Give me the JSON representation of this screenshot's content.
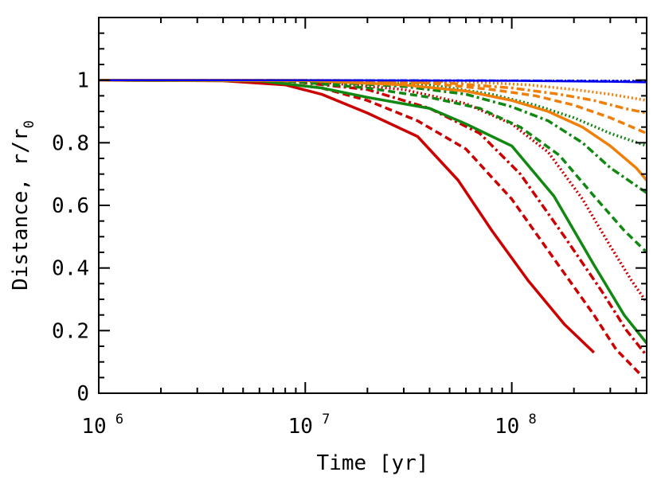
{
  "chart_data": {
    "type": "line",
    "xlabel": "Time [yr]",
    "ylabel": {
      "main": "Distance, r/r",
      "sub": "0"
    },
    "x_scale": "log",
    "xlim": [
      1000000,
      450000000
    ],
    "ylim": [
      0,
      1.2
    ],
    "x_ticks": [
      {
        "value": 1000000,
        "base": "10",
        "exp": "6"
      },
      {
        "value": 10000000,
        "base": "10",
        "exp": "7"
      },
      {
        "value": 100000000,
        "base": "10",
        "exp": "8"
      }
    ],
    "y_ticks": [
      {
        "value": 0,
        "label": "0"
      },
      {
        "value": 0.2,
        "label": "0.2"
      },
      {
        "value": 0.4,
        "label": "0.4"
      },
      {
        "value": 0.6,
        "label": "0.6"
      },
      {
        "value": 0.8,
        "label": "0.8"
      },
      {
        "value": 1.0,
        "label": "1"
      }
    ],
    "grid": false,
    "series": [
      {
        "color": "#cc0000",
        "style": "solid",
        "points": [
          [
            1000000,
            1.0
          ],
          [
            4000000,
            0.998
          ],
          [
            8000000,
            0.985
          ],
          [
            12000000,
            0.955
          ],
          [
            20000000,
            0.895
          ],
          [
            35000000,
            0.82
          ],
          [
            55000000,
            0.68
          ],
          [
            80000000,
            0.52
          ],
          [
            120000000,
            0.36
          ],
          [
            180000000,
            0.22
          ],
          [
            250000000,
            0.13
          ]
        ]
      },
      {
        "color": "#cc0000",
        "style": "dashed",
        "points": [
          [
            1000000,
            1.0
          ],
          [
            6000000,
            0.998
          ],
          [
            12000000,
            0.975
          ],
          [
            20000000,
            0.935
          ],
          [
            35000000,
            0.87
          ],
          [
            60000000,
            0.78
          ],
          [
            100000000,
            0.62
          ],
          [
            160000000,
            0.43
          ],
          [
            250000000,
            0.25
          ],
          [
            320000000,
            0.14
          ],
          [
            420000000,
            0.06
          ]
        ]
      },
      {
        "color": "#cc0000",
        "style": "dashdot",
        "points": [
          [
            1000000,
            1.0
          ],
          [
            8000000,
            0.998
          ],
          [
            20000000,
            0.97
          ],
          [
            40000000,
            0.91
          ],
          [
            70000000,
            0.83
          ],
          [
            110000000,
            0.7
          ],
          [
            180000000,
            0.5
          ],
          [
            270000000,
            0.33
          ],
          [
            360000000,
            0.2
          ],
          [
            450000000,
            0.12
          ]
        ]
      },
      {
        "color": "#cc0000",
        "style": "dotted",
        "points": [
          [
            1000000,
            1.0
          ],
          [
            10000000,
            0.998
          ],
          [
            30000000,
            0.97
          ],
          [
            60000000,
            0.925
          ],
          [
            100000000,
            0.86
          ],
          [
            150000000,
            0.77
          ],
          [
            220000000,
            0.62
          ],
          [
            300000000,
            0.47
          ],
          [
            380000000,
            0.36
          ],
          [
            450000000,
            0.29
          ]
        ]
      },
      {
        "color": "#118811",
        "style": "solid",
        "points": [
          [
            1000000,
            1.0
          ],
          [
            6000000,
            0.998
          ],
          [
            12000000,
            0.975
          ],
          [
            20000000,
            0.945
          ],
          [
            40000000,
            0.91
          ],
          [
            60000000,
            0.86
          ],
          [
            100000000,
            0.79
          ],
          [
            160000000,
            0.63
          ],
          [
            250000000,
            0.41
          ],
          [
            350000000,
            0.25
          ],
          [
            450000000,
            0.16
          ]
        ]
      },
      {
        "color": "#118811",
        "style": "dashed",
        "points": [
          [
            1000000,
            1.0
          ],
          [
            8000000,
            0.998
          ],
          [
            20000000,
            0.975
          ],
          [
            40000000,
            0.945
          ],
          [
            70000000,
            0.91
          ],
          [
            110000000,
            0.85
          ],
          [
            170000000,
            0.76
          ],
          [
            250000000,
            0.63
          ],
          [
            350000000,
            0.52
          ],
          [
            450000000,
            0.45
          ]
        ]
      },
      {
        "color": "#118811",
        "style": "dashdot",
        "points": [
          [
            1000000,
            1.0
          ],
          [
            10000000,
            0.998
          ],
          [
            30000000,
            0.98
          ],
          [
            60000000,
            0.955
          ],
          [
            100000000,
            0.915
          ],
          [
            150000000,
            0.87
          ],
          [
            220000000,
            0.8
          ],
          [
            300000000,
            0.72
          ],
          [
            450000000,
            0.64
          ]
        ]
      },
      {
        "color": "#118811",
        "style": "dotted",
        "points": [
          [
            1000000,
            1.0
          ],
          [
            10000000,
            0.999
          ],
          [
            40000000,
            0.985
          ],
          [
            80000000,
            0.955
          ],
          [
            130000000,
            0.92
          ],
          [
            200000000,
            0.88
          ],
          [
            300000000,
            0.83
          ],
          [
            450000000,
            0.79
          ]
        ]
      },
      {
        "color": "#f07f09",
        "style": "solid",
        "points": [
          [
            1000000,
            1.0
          ],
          [
            10000000,
            0.999
          ],
          [
            30000000,
            0.985
          ],
          [
            60000000,
            0.965
          ],
          [
            100000000,
            0.935
          ],
          [
            150000000,
            0.9
          ],
          [
            220000000,
            0.85
          ],
          [
            300000000,
            0.79
          ],
          [
            400000000,
            0.72
          ],
          [
            450000000,
            0.68
          ]
        ]
      },
      {
        "color": "#f07f09",
        "style": "dashed",
        "points": [
          [
            1000000,
            1.0
          ],
          [
            10000000,
            0.999
          ],
          [
            40000000,
            0.99
          ],
          [
            80000000,
            0.97
          ],
          [
            130000000,
            0.95
          ],
          [
            200000000,
            0.92
          ],
          [
            300000000,
            0.88
          ],
          [
            450000000,
            0.83
          ]
        ]
      },
      {
        "color": "#f07f09",
        "style": "dashdot",
        "points": [
          [
            1000000,
            1.0
          ],
          [
            15000000,
            0.999
          ],
          [
            50000000,
            0.99
          ],
          [
            100000000,
            0.975
          ],
          [
            170000000,
            0.955
          ],
          [
            250000000,
            0.935
          ],
          [
            350000000,
            0.91
          ],
          [
            450000000,
            0.895
          ]
        ]
      },
      {
        "color": "#f07f09",
        "style": "dotted",
        "points": [
          [
            1000000,
            1.0
          ],
          [
            20000000,
            0.999
          ],
          [
            60000000,
            0.995
          ],
          [
            120000000,
            0.985
          ],
          [
            200000000,
            0.97
          ],
          [
            300000000,
            0.955
          ],
          [
            450000000,
            0.935
          ]
        ]
      },
      {
        "color": "#0000ee",
        "style": "solid",
        "points": [
          [
            1000000,
            1.0
          ],
          [
            10000000,
            1.0
          ],
          [
            100000000,
            0.998
          ],
          [
            300000000,
            0.995
          ],
          [
            450000000,
            0.993
          ]
        ]
      },
      {
        "color": "#0000ee",
        "style": "dashed",
        "points": [
          [
            1000000,
            1.0
          ],
          [
            10000000,
            1.0
          ],
          [
            100000000,
            0.999
          ],
          [
            300000000,
            0.997
          ],
          [
            450000000,
            0.996
          ]
        ]
      },
      {
        "color": "#0000ee",
        "style": "dotted",
        "points": [
          [
            1000000,
            1.0
          ],
          [
            10000000,
            1.0
          ],
          [
            100000000,
            0.999
          ],
          [
            450000000,
            0.998
          ]
        ]
      }
    ]
  }
}
